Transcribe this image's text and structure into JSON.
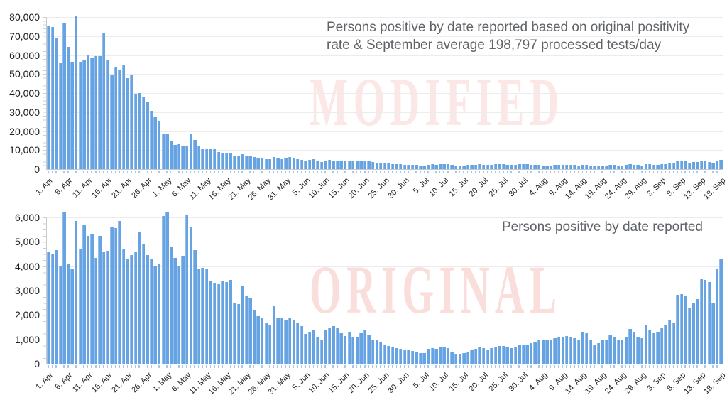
{
  "colors": {
    "bar": "#66A3E3",
    "bar_highlight": "#92BDEC",
    "gridline": "#ECECEC",
    "axis": "#C9C9C9",
    "bar_tick": "#A8C8ED",
    "title_text": "#5F6368",
    "axis_label_text": "#1E1E1E",
    "watermark_modified": "#FBE7E5",
    "watermark_original": "#F9DEDC",
    "background": "#FFFFFF"
  },
  "chart_data": {
    "type": "bar",
    "layout": "two_vertically_stacked_bar_charts, shared x axis categories, gridlines on, no legend",
    "xtick_every": 5,
    "xtick_labels": [
      "1. Apr",
      "6. Apr",
      "11. Apr",
      "16. Apr",
      "21. Apr",
      "26. Apr",
      "1. May",
      "6. May",
      "11. May",
      "16. May",
      "21. May",
      "26. May",
      "31. May",
      "5. Jun",
      "10. Jun",
      "15. Jun",
      "20. Jun",
      "25. Jun",
      "30. Jun",
      "5. Jul",
      "10. Jul",
      "15. Jul",
      "20. Jul",
      "25. Jul",
      "30. Jul",
      "4. Aug",
      "9. Aug",
      "14. Aug",
      "19. Aug",
      "24. Aug",
      "29. Aug",
      "3. Sep",
      "8. Sep",
      "13. Sep",
      "18. Sep"
    ],
    "categories": [
      "1. Apr",
      "2. Apr",
      "3. Apr",
      "4. Apr",
      "5. Apr",
      "6. Apr",
      "7. Apr",
      "8. Apr",
      "9. Apr",
      "10. Apr",
      "11. Apr",
      "12. Apr",
      "13. Apr",
      "14. Apr",
      "15. Apr",
      "16. Apr",
      "17. Apr",
      "18. Apr",
      "19. Apr",
      "20. Apr",
      "21. Apr",
      "22. Apr",
      "23. Apr",
      "24. Apr",
      "25. Apr",
      "26. Apr",
      "27. Apr",
      "28. Apr",
      "29. Apr",
      "30. Apr",
      "1. May",
      "2. May",
      "3. May",
      "4. May",
      "5. May",
      "6. May",
      "7. May",
      "8. May",
      "9. May",
      "10. May",
      "11. May",
      "12. May",
      "13. May",
      "14. May",
      "15. May",
      "16. May",
      "17. May",
      "18. May",
      "19. May",
      "20. May",
      "21. May",
      "22. May",
      "23. May",
      "24. May",
      "25. May",
      "26. May",
      "27. May",
      "28. May",
      "29. May",
      "30. May",
      "31. May",
      "1. Jun",
      "2. Jun",
      "3. Jun",
      "4. Jun",
      "5. Jun",
      "6. Jun",
      "7. Jun",
      "8. Jun",
      "9. Jun",
      "10. Jun",
      "11. Jun",
      "12. Jun",
      "13. Jun",
      "14. Jun",
      "15. Jun",
      "16. Jun",
      "17. Jun",
      "18. Jun",
      "19. Jun",
      "20. Jun",
      "21. Jun",
      "22. Jun",
      "23. Jun",
      "24. Jun",
      "25. Jun",
      "26. Jun",
      "27. Jun",
      "28. Jun",
      "29. Jun",
      "30. Jun",
      "1. Jul",
      "2. Jul",
      "3. Jul",
      "4. Jul",
      "5. Jul",
      "6. Jul",
      "7. Jul",
      "8. Jul",
      "9. Jul",
      "10. Jul",
      "11. Jul",
      "12. Jul",
      "13. Jul",
      "14. Jul",
      "15. Jul",
      "16. Jul",
      "17. Jul",
      "18. Jul",
      "19. Jul",
      "20. Jul",
      "21. Jul",
      "22. Jul",
      "23. Jul",
      "24. Jul",
      "25. Jul",
      "26. Jul",
      "27. Jul",
      "28. Jul",
      "29. Jul",
      "30. Jul",
      "31. Jul",
      "1. Aug",
      "2. Aug",
      "3. Aug",
      "4. Aug",
      "5. Aug",
      "6. Aug",
      "7. Aug",
      "8. Aug",
      "9. Aug",
      "10. Aug",
      "11. Aug",
      "12. Aug",
      "13. Aug",
      "14. Aug",
      "15. Aug",
      "16. Aug",
      "17. Aug",
      "18. Aug",
      "19. Aug",
      "20. Aug",
      "21. Aug",
      "22. Aug",
      "23. Aug",
      "24. Aug",
      "25. Aug",
      "26. Aug",
      "27. Aug",
      "28. Aug",
      "29. Aug",
      "30. Aug",
      "31. Aug",
      "1. Sep",
      "2. Sep",
      "3. Sep",
      "4. Sep",
      "5. Sep",
      "6. Sep",
      "7. Sep",
      "8. Sep",
      "9. Sep",
      "10. Sep",
      "11. Sep",
      "12. Sep",
      "13. Sep",
      "14. Sep",
      "15. Sep",
      "16. Sep",
      "17. Sep",
      "18. Sep"
    ],
    "charts": [
      {
        "name": "modified",
        "title_line1": "Persons positive by date reported based on original positivity",
        "title_line2": "rate & September average 198,797 processed tests/day",
        "watermark": "MODIFIED",
        "ylim": [
          0,
          80000
        ],
        "ytick_labels": [
          "0",
          "10,000",
          "20,000",
          "30,000",
          "40,000",
          "50,000",
          "60,000",
          "70,000",
          "80,000"
        ],
        "values": [
          75700,
          74800,
          69200,
          55700,
          76700,
          64400,
          56400,
          80400,
          56400,
          57600,
          59800,
          58500,
          59400,
          59400,
          71300,
          57300,
          49400,
          53600,
          52300,
          54400,
          47900,
          49200,
          39400,
          40100,
          38200,
          35500,
          30700,
          27300,
          25500,
          18600,
          18300,
          15000,
          12800,
          13500,
          12000,
          11800,
          18200,
          15500,
          12200,
          10500,
          10300,
          10500,
          10300,
          9000,
          8700,
          8500,
          8300,
          7200,
          6800,
          7800,
          7200,
          6600,
          6200,
          5800,
          5500,
          5200,
          5400,
          6400,
          5600,
          5300,
          5600,
          6500,
          5800,
          5200,
          4800,
          4400,
          4900,
          5300,
          4600,
          3900,
          4500,
          4700,
          4600,
          4400,
          4100,
          4000,
          4500,
          4200,
          4000,
          4300,
          4400,
          4100,
          3700,
          3500,
          3300,
          3200,
          3000,
          2800,
          2600,
          2500,
          2400,
          2300,
          2200,
          2100,
          1900,
          2000,
          2400,
          2500,
          2400,
          2500,
          2600,
          2500,
          2100,
          1900,
          1800,
          2000,
          2100,
          2200,
          2400,
          2500,
          2400,
          2300,
          2400,
          2500,
          2600,
          2500,
          2400,
          2300,
          2400,
          2500,
          2600,
          2600,
          2200,
          2150,
          2100,
          2050,
          2000,
          1950,
          2100,
          2200,
          2150,
          2250,
          2200,
          2100,
          2000,
          2400,
          2300,
          1900,
          1700,
          1800,
          2000,
          1900,
          2300,
          2200,
          2000,
          1900,
          2100,
          2600,
          2400,
          2100,
          2000,
          2800,
          2500,
          2300,
          2400,
          2600,
          2800,
          3100,
          2900,
          4300,
          4400,
          4200,
          3500,
          3700,
          3900,
          4100,
          4000,
          3900,
          3100,
          4400,
          4700
        ]
      },
      {
        "name": "original",
        "title_line1": "Persons positive by date reported",
        "title_line2": "",
        "watermark": "ORIGINAL",
        "ylim": [
          0,
          6000
        ],
        "ytick_labels": [
          "0",
          "1,000",
          "2,000",
          "3,000",
          "4,000",
          "5,000",
          "6,000"
        ],
        "values": [
          4580,
          4500,
          4650,
          4000,
          6200,
          4120,
          3880,
          5850,
          4680,
          5700,
          5250,
          5300,
          4340,
          5250,
          4600,
          4620,
          5620,
          5550,
          5850,
          4680,
          4300,
          4450,
          4600,
          5380,
          4900,
          4460,
          4320,
          3980,
          4080,
          6050,
          6200,
          4800,
          4340,
          4000,
          4420,
          6120,
          5620,
          4650,
          3900,
          3920,
          3880,
          3420,
          3280,
          3250,
          3400,
          3350,
          3450,
          2500,
          2450,
          3170,
          2800,
          2700,
          2200,
          1950,
          1870,
          1700,
          1600,
          2360,
          1850,
          1900,
          1800,
          1890,
          1820,
          1700,
          1530,
          1220,
          1300,
          1380,
          1100,
          950,
          1400,
          1480,
          1530,
          1450,
          1240,
          1150,
          1300,
          1120,
          1100,
          1280,
          1360,
          1180,
          1000,
          950,
          870,
          800,
          740,
          700,
          650,
          600,
          580,
          560,
          520,
          480,
          430,
          450,
          600,
          640,
          620,
          660,
          670,
          640,
          480,
          420,
          400,
          450,
          500,
          560,
          620,
          670,
          650,
          590,
          640,
          700,
          740,
          720,
          680,
          640,
          700,
          750,
          780,
          800,
          850,
          900,
          950,
          1000,
          980,
          950,
          1050,
          1100,
          1080,
          1150,
          1100,
          1050,
          1000,
          1300,
          1250,
          950,
          800,
          850,
          1000,
          950,
          1200,
          1100,
          1000,
          950,
          1100,
          1440,
          1300,
          1100,
          1050,
          1580,
          1400,
          1250,
          1300,
          1450,
          1600,
          1820,
          1650,
          2830,
          2850,
          2800,
          2310,
          2500,
          2650,
          3460,
          3430,
          3350,
          2500,
          3860,
          4300
        ]
      }
    ]
  }
}
